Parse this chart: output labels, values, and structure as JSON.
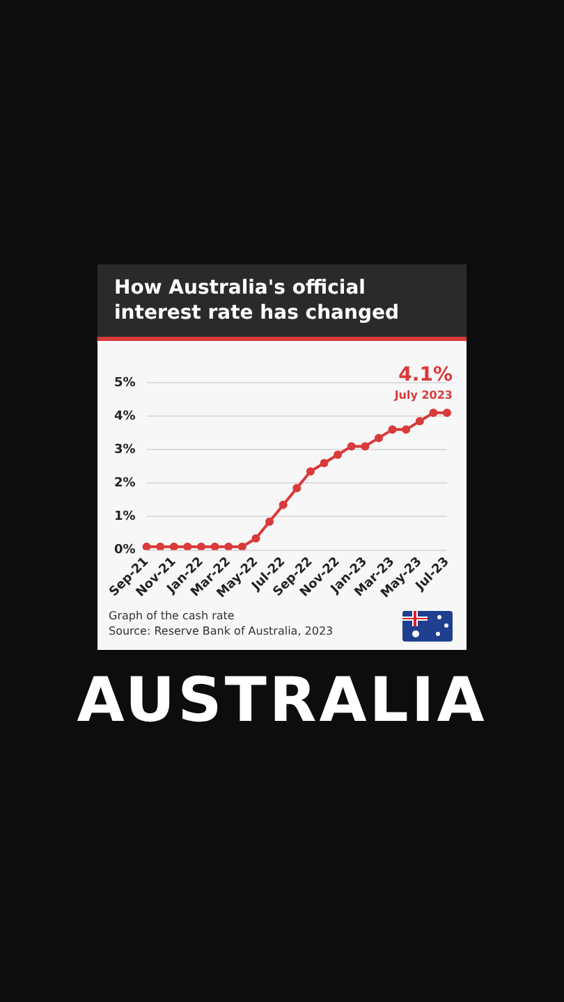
{
  "chart_data": {
    "type": "line",
    "title": "How Australia's official interest rate has changed",
    "categories": [
      "Sep-21",
      null,
      "Nov-21",
      null,
      "Jan-22",
      null,
      "Mar-22",
      null,
      "May-22",
      null,
      "Jul-22",
      null,
      "Sep-22",
      null,
      "Nov-22",
      null,
      "Jan-23",
      null,
      "Mar-23",
      null,
      "May-23",
      null,
      "Jul-23"
    ],
    "series": [
      {
        "color": "#d93a3a",
        "values": [
          0.1,
          0.1,
          0.1,
          0.1,
          0.1,
          0.1,
          0.1,
          0.1,
          0.35,
          0.85,
          1.35,
          1.85,
          2.35,
          2.6,
          2.85,
          3.1,
          3.1,
          3.35,
          3.6,
          3.6,
          3.85,
          4.1,
          4.1
        ]
      }
    ],
    "ylim": [
      0,
      5
    ],
    "yticks": [
      {
        "value": 0,
        "label": "0%"
      },
      {
        "value": 1,
        "label": "1%"
      },
      {
        "value": 2,
        "label": "2%"
      },
      {
        "value": 3,
        "label": "3%"
      },
      {
        "value": 4,
        "label": "4%"
      },
      {
        "value": 5,
        "label": "5%"
      }
    ],
    "grid": "y",
    "marker": "circle",
    "line_style": "solid",
    "legend": false,
    "annotations": [
      {
        "text": "4.1%",
        "x": "Jul-23",
        "y": 4.1
      },
      {
        "text": "July 2023",
        "x": "Jul-23",
        "y": 4.1
      },
      "Graph of the cash rate",
      "Source: Reserve Bank of Australia, 2023",
      "AUSTRALIA"
    ]
  }
}
